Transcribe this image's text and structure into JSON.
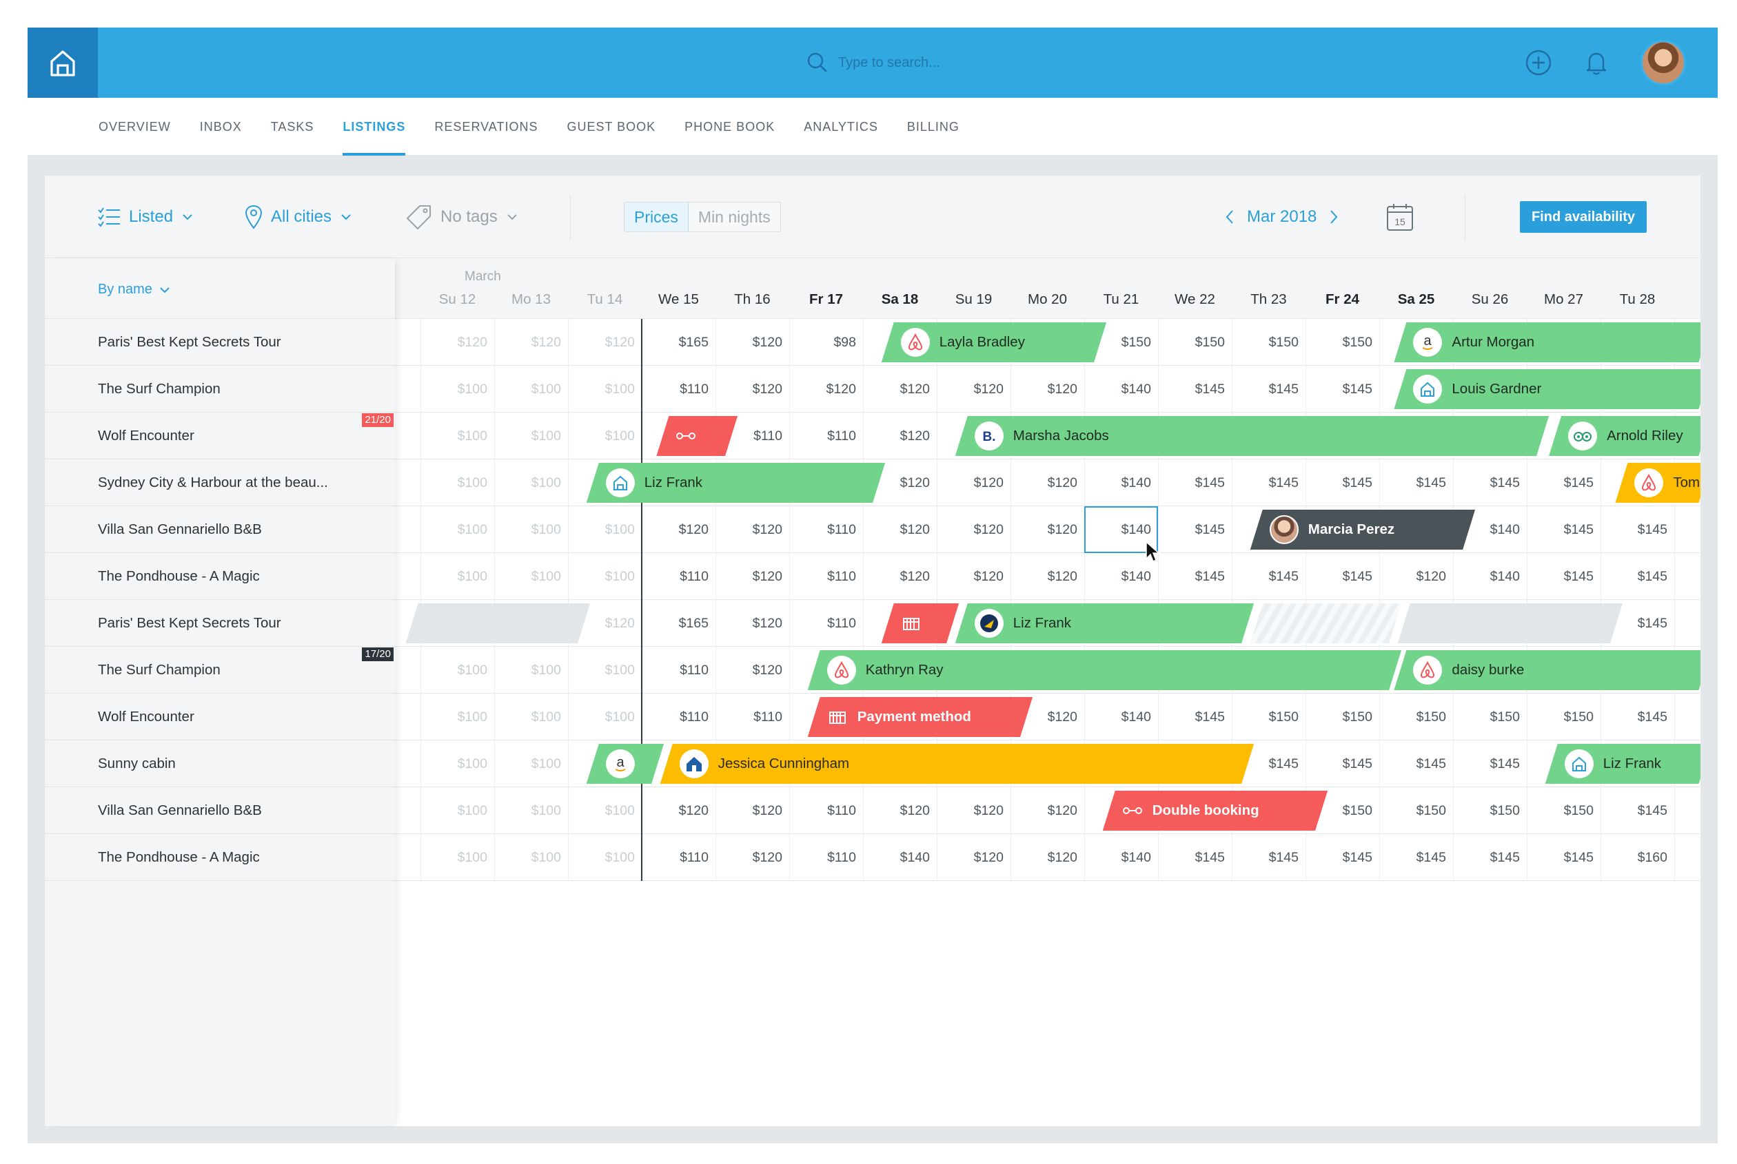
{
  "search": {
    "placeholder": "Type to search..."
  },
  "tabs": [
    {
      "label": "OVERVIEW"
    },
    {
      "label": "INBOX"
    },
    {
      "label": "TASKS"
    },
    {
      "label": "LISTINGS"
    },
    {
      "label": "RESERVATIONS"
    },
    {
      "label": "GUEST BOOK"
    },
    {
      "label": "PHONE BOOK"
    },
    {
      "label": "ANALYTICS"
    },
    {
      "label": "BILLING"
    }
  ],
  "active_tab": "LISTINGS",
  "filters": {
    "status": "Listed",
    "city": "All cities",
    "tags": "No tags",
    "view_on": "Prices",
    "view_off": "Min nights",
    "month": "Mar 2018",
    "calendar_day": "15",
    "find_button": "Find availability"
  },
  "sort_label": "By name",
  "month_label": "March",
  "colors": {
    "accent": "#2b9fdb",
    "topbar": "#32a8e0",
    "green": "#72d38a",
    "red": "#f65b5b",
    "yellow": "#fdbc00",
    "dark": "#4a5358"
  },
  "days": [
    {
      "label": "Su 12",
      "style": "past"
    },
    {
      "label": "Mo 13",
      "style": "past"
    },
    {
      "label": "Tu 14",
      "style": "past"
    },
    {
      "label": "We 15",
      "style": "norm"
    },
    {
      "label": "Th 16",
      "style": "norm"
    },
    {
      "label": "Fr 17",
      "style": "bold"
    },
    {
      "label": "Sa 18",
      "style": "bold"
    },
    {
      "label": "Su 19",
      "style": "norm"
    },
    {
      "label": "Mo 20",
      "style": "norm"
    },
    {
      "label": "Tu 21",
      "style": "norm"
    },
    {
      "label": "We 22",
      "style": "norm"
    },
    {
      "label": "Th 23",
      "style": "norm"
    },
    {
      "label": "Fr 24",
      "style": "bold"
    },
    {
      "label": "Sa 25",
      "style": "bold"
    },
    {
      "label": "Su 26",
      "style": "norm"
    },
    {
      "label": "Mo 27",
      "style": "norm"
    },
    {
      "label": "Tu 28",
      "style": "norm"
    }
  ],
  "listings": [
    {
      "name": "Paris' Best Kept Secrets Tour",
      "prices": [
        "$120",
        "$120",
        "$120",
        "$165",
        "$120",
        "$98",
        "",
        "",
        "",
        "$150",
        "$150",
        "$150",
        "$150",
        "",
        "",
        "",
        ""
      ]
    },
    {
      "name": "The Surf Champion",
      "prices": [
        "$100",
        "$100",
        "$100",
        "$110",
        "$120",
        "$120",
        "$120",
        "$120",
        "$120",
        "$140",
        "$145",
        "$145",
        "$145",
        "",
        "",
        "",
        ""
      ]
    },
    {
      "name": "Wolf Encounter",
      "badge": "21/20",
      "badge_color": "#f65b5b",
      "prices": [
        "$100",
        "$100",
        "$100",
        "",
        "$110",
        "$110",
        "$120",
        "",
        "",
        "",
        "",
        "",
        "",
        "",
        "",
        "",
        ""
      ]
    },
    {
      "name": "Sydney City & Harbour at the beau...",
      "prices": [
        "$100",
        "$100",
        "",
        "",
        "",
        "",
        "$120",
        "$120",
        "$120",
        "$140",
        "$145",
        "$145",
        "$145",
        "$145",
        "$145",
        "$145",
        ""
      ]
    },
    {
      "name": "Villa San Gennariello B&B",
      "prices": [
        "$100",
        "$100",
        "$100",
        "$120",
        "$120",
        "$110",
        "$120",
        "$120",
        "$120",
        "$140",
        "$145",
        "",
        "",
        "",
        "$140",
        "$145",
        "$145"
      ]
    },
    {
      "name": "The Pondhouse - A Magic",
      "prices": [
        "$100",
        "$100",
        "$100",
        "$110",
        "$120",
        "$110",
        "$120",
        "$120",
        "$120",
        "$140",
        "$145",
        "$145",
        "$145",
        "$120",
        "$140",
        "$145",
        "$145"
      ]
    },
    {
      "name": "Paris' Best Kept Secrets Tour",
      "prices": [
        "",
        "",
        "$120",
        "$165",
        "$120",
        "$110",
        "",
        "",
        "",
        "",
        "",
        "",
        "",
        "",
        "",
        "",
        "$145"
      ]
    },
    {
      "name": "The Surf Champion",
      "badge": "17/20",
      "badge_color": "#2b3238",
      "prices": [
        "$100",
        "$100",
        "$100",
        "$110",
        "$120",
        "",
        "",
        "",
        "",
        "",
        "",
        "",
        "",
        "",
        "",
        "",
        ""
      ]
    },
    {
      "name": "Wolf Encounter",
      "prices": [
        "$100",
        "$100",
        "$100",
        "$110",
        "$110",
        "",
        "",
        "",
        "$120",
        "$140",
        "$145",
        "$150",
        "$150",
        "$150",
        "$150",
        "$150",
        "$145"
      ]
    },
    {
      "name": "Sunny cabin",
      "prices": [
        "$100",
        "$100",
        "",
        "",
        "",
        "",
        "",
        "",
        "",
        "",
        "",
        "$145",
        "$145",
        "$145",
        "$145",
        "",
        ""
      ]
    },
    {
      "name": "Villa San Gennariello B&B",
      "prices": [
        "$100",
        "$100",
        "$100",
        "$120",
        "$120",
        "$110",
        "$120",
        "$120",
        "$120",
        "",
        "",
        "",
        "$150",
        "$150",
        "$150",
        "$150",
        "$145"
      ]
    },
    {
      "name": "The Pondhouse - A Magic",
      "prices": [
        "$100",
        "$100",
        "$100",
        "$110",
        "$120",
        "$110",
        "$140",
        "$120",
        "$120",
        "$140",
        "$145",
        "$145",
        "$145",
        "$145",
        "$145",
        "$145",
        "$160"
      ]
    }
  ],
  "bookings": [
    {
      "row": 0,
      "start": 6.25,
      "end": 9.3,
      "color": "green",
      "icon": "airbnb-icon",
      "guest": "Layla Bradley"
    },
    {
      "row": 0,
      "start": 13.2,
      "end": 17.5,
      "color": "green",
      "icon": "amazon-icon",
      "guest": "Artur Morgan"
    },
    {
      "row": 1,
      "start": 13.2,
      "end": 17.5,
      "color": "green",
      "icon": "home-icon",
      "guest": "Louis Gardner"
    },
    {
      "row": 2,
      "start": 3.2,
      "end": 4.3,
      "color": "red",
      "icon": "link-icon",
      "guest": ""
    },
    {
      "row": 2,
      "start": 7.25,
      "end": 15.3,
      "color": "green",
      "icon": "booking-icon",
      "guest": "Marsha Jacobs"
    },
    {
      "row": 2,
      "start": 15.3,
      "end": 17.5,
      "color": "green",
      "icon": "tripadvisor-icon",
      "guest": "Arnold Riley"
    },
    {
      "row": 3,
      "start": 2.25,
      "end": 6.3,
      "color": "green",
      "icon": "home-icon",
      "guest": "Liz Frank"
    },
    {
      "row": 3,
      "start": 16.2,
      "end": 17.5,
      "color": "yellow",
      "icon": "airbnb-icon",
      "guest": "Tom"
    },
    {
      "row": 4,
      "start": 11.25,
      "end": 14.3,
      "color": "dark",
      "icon": "guest-photo",
      "guest": "Marcia Perez"
    },
    {
      "row": 6,
      "start": -0.2,
      "end": 2.3,
      "color": "grey",
      "icon": "",
      "guest": ""
    },
    {
      "row": 6,
      "start": 6.25,
      "end": 7.3,
      "color": "red",
      "icon": "payment-icon",
      "guest": ""
    },
    {
      "row": 6,
      "start": 7.25,
      "end": 11.3,
      "color": "green",
      "icon": "expedia-icon",
      "guest": "Liz Frank"
    },
    {
      "row": 6,
      "start": 11.25,
      "end": 13.3,
      "color": "hatch",
      "icon": "",
      "guest": ""
    },
    {
      "row": 6,
      "start": 13.25,
      "end": 16.3,
      "color": "grey",
      "icon": "",
      "guest": ""
    },
    {
      "row": 7,
      "start": 5.25,
      "end": 13.3,
      "color": "green",
      "icon": "airbnb-icon",
      "guest": "Kathryn Ray"
    },
    {
      "row": 7,
      "start": 13.2,
      "end": 17.5,
      "color": "green",
      "icon": "airbnb-icon",
      "guest": "daisy burke"
    },
    {
      "row": 8,
      "start": 5.25,
      "end": 8.3,
      "color": "red",
      "icon": "payment-icon",
      "guest": "Payment method"
    },
    {
      "row": 9,
      "start": 2.25,
      "end": 3.3,
      "color": "green",
      "icon": "amazon-icon",
      "guest": ""
    },
    {
      "row": 9,
      "start": 3.25,
      "end": 11.3,
      "color": "yellow",
      "icon": "homeaway-icon",
      "guest": "Jessica Cunningham"
    },
    {
      "row": 9,
      "start": 15.25,
      "end": 17.5,
      "color": "green",
      "icon": "home-icon",
      "guest": "Liz Frank"
    },
    {
      "row": 10,
      "start": 9.25,
      "end": 12.3,
      "color": "red",
      "icon": "link-icon",
      "guest": "Double booking"
    }
  ]
}
